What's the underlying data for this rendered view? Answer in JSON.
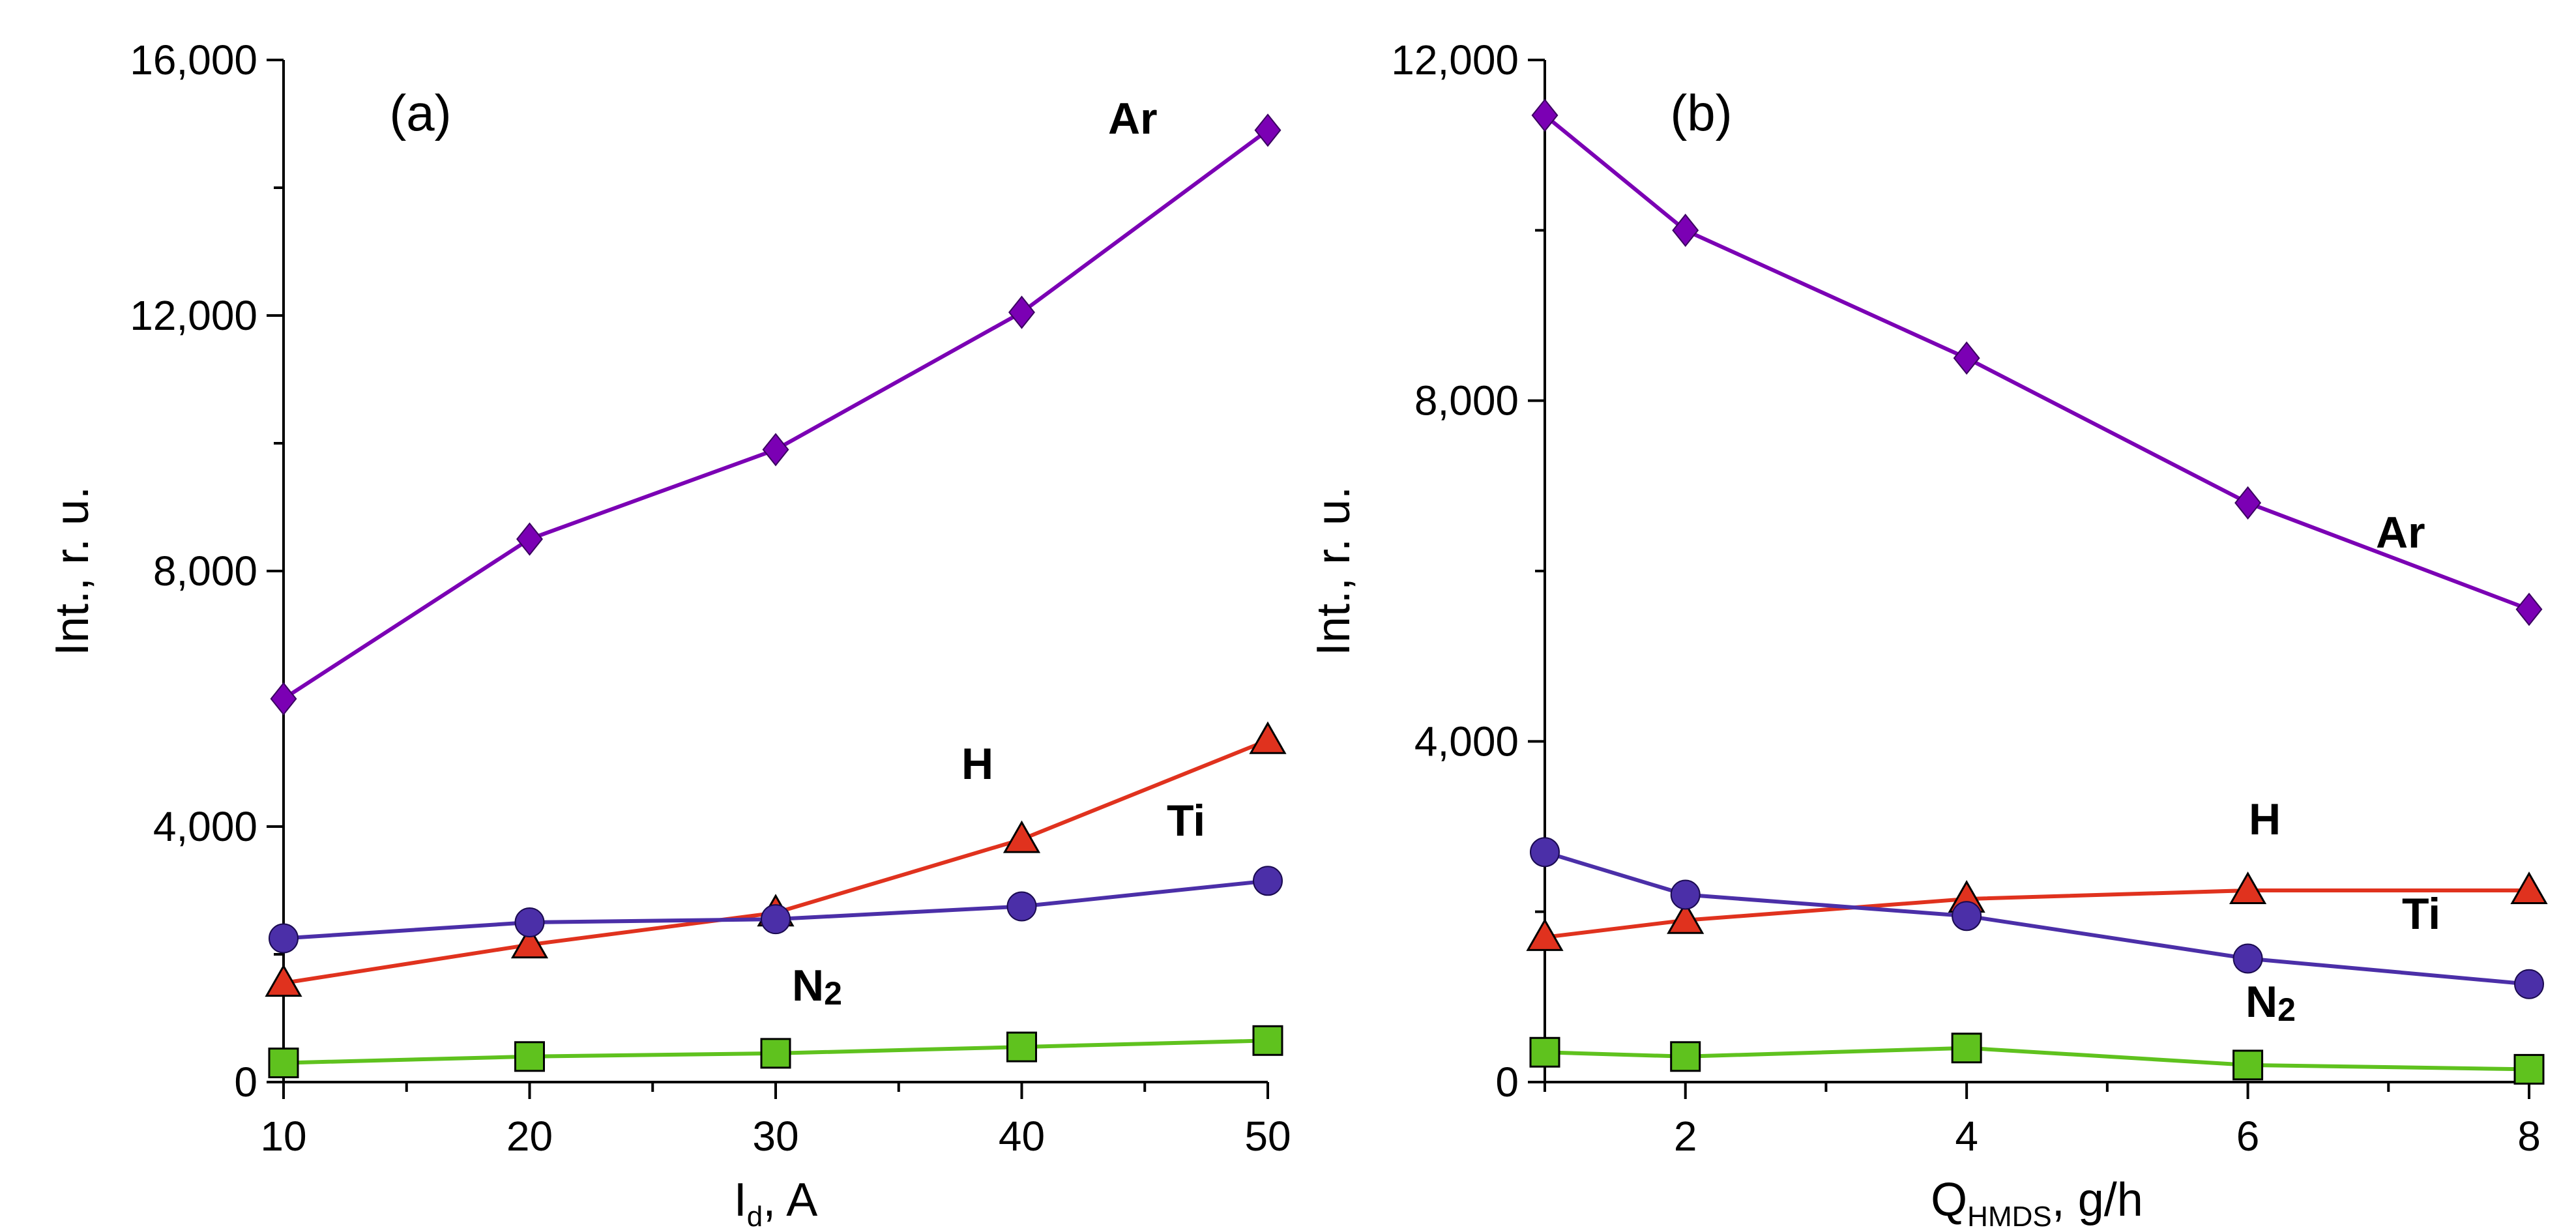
{
  "chart_data": [
    {
      "type": "line",
      "panel": "(a)",
      "x": [
        10,
        20,
        30,
        40,
        50
      ],
      "xlabel": "I",
      "xlabel_sub": "d",
      "xlabel_suffix": ", A",
      "ylabel": "Int., r. u.",
      "xlim": [
        10,
        50
      ],
      "ylim": [
        0,
        16000
      ],
      "xticks": [
        10,
        20,
        30,
        40,
        50
      ],
      "xtick_labels": [
        "10",
        "20",
        "30",
        "40",
        "50"
      ],
      "yticks": [
        0,
        4000,
        8000,
        12000,
        16000
      ],
      "ytick_labels": [
        "0",
        "4,000",
        "8,000",
        "12,000",
        "16,000"
      ],
      "series": [
        {
          "name": "Ar",
          "color": "#7b00b4",
          "marker": "diamond",
          "values": [
            6000,
            8500,
            9900,
            12050,
            14900
          ]
        },
        {
          "name": "H",
          "color": "#e0321e",
          "marker": "triangle",
          "values": [
            1550,
            2150,
            2650,
            3800,
            5350
          ]
        },
        {
          "name": "Ti",
          "color": "#4b2fa8",
          "marker": "circle",
          "values": [
            2250,
            2500,
            2550,
            2750,
            3150
          ]
        },
        {
          "name": "N",
          "sub": "2",
          "color": "#5fc21e",
          "marker": "square",
          "values": [
            300,
            400,
            450,
            550,
            650
          ]
        }
      ]
    },
    {
      "type": "line",
      "panel": "(b)",
      "x": [
        1,
        2,
        4,
        6,
        8
      ],
      "xlabel": "Q",
      "xlabel_sub": "HMDS",
      "xlabel_suffix": ", g/h",
      "ylabel": "Int., r. u.",
      "xlim": [
        1,
        8
      ],
      "ylim": [
        0,
        12000
      ],
      "xticks": [
        2,
        4,
        6,
        8
      ],
      "xtick_labels": [
        "2",
        "4",
        "6",
        "8"
      ],
      "yticks": [
        0,
        4000,
        8000,
        12000
      ],
      "ytick_labels": [
        "0",
        "4,000",
        "8,000",
        "12,000"
      ],
      "series": [
        {
          "name": "Ar",
          "color": "#7b00b4",
          "marker": "diamond",
          "values": [
            11350,
            10000,
            8500,
            6800,
            5550
          ]
        },
        {
          "name": "H",
          "color": "#e0321e",
          "marker": "triangle",
          "values": [
            1700,
            1900,
            2150,
            2250,
            2250
          ]
        },
        {
          "name": "Ti",
          "color": "#4b2fa8",
          "marker": "circle",
          "values": [
            2700,
            2200,
            1950,
            1450,
            1150
          ]
        },
        {
          "name": "N",
          "sub": "2",
          "color": "#5fc21e",
          "marker": "square",
          "values": [
            350,
            300,
            400,
            200,
            150
          ]
        }
      ]
    }
  ]
}
